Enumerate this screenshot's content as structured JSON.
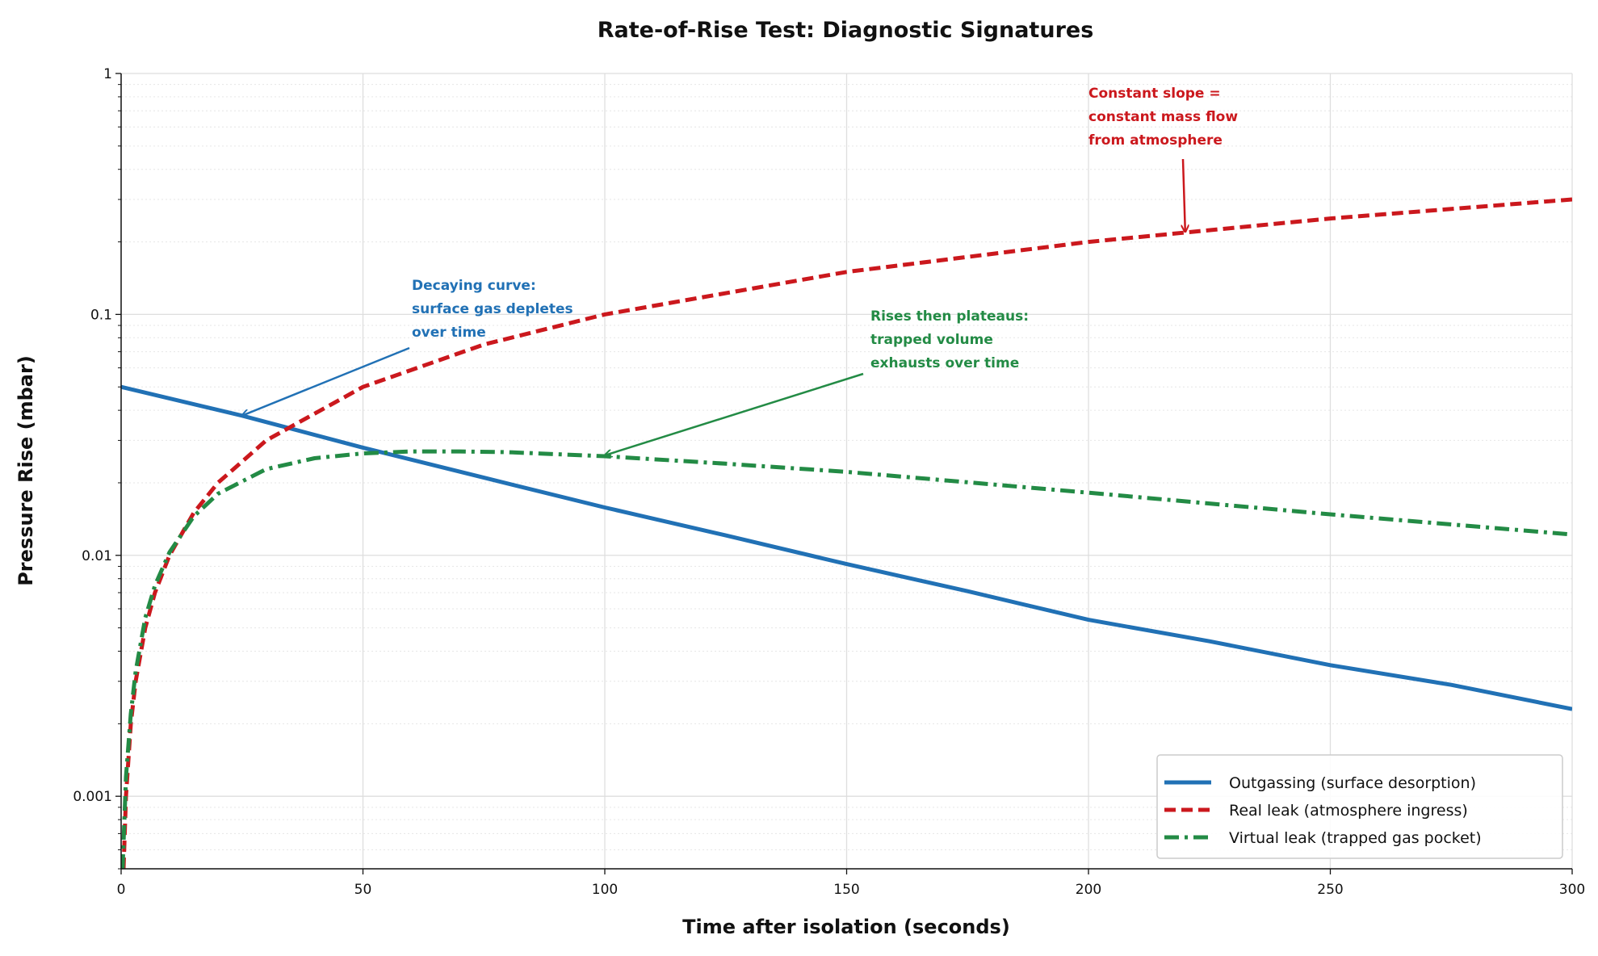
{
  "chart_data": {
    "type": "line",
    "title": "Rate-of-Rise Test: Diagnostic Signatures",
    "xlabel": "Time after isolation (seconds)",
    "ylabel": "Pressure Rise (mbar)",
    "xlim": [
      0,
      300
    ],
    "ylim": [
      0.0005,
      1
    ],
    "yscale": "log",
    "grid": true,
    "legend_placement": "lower-right",
    "x_ticks": [
      "0",
      "50",
      "100",
      "150",
      "200",
      "250",
      "300"
    ],
    "y_ticks": [
      "0.001",
      "0.01",
      "0.1",
      "1"
    ],
    "series": [
      {
        "name": "Outgassing (surface desorption)",
        "color": "#2171b5",
        "style": "solid",
        "x": [
          0,
          25,
          50,
          75,
          100,
          125,
          150,
          175,
          200,
          225,
          250,
          275,
          300
        ],
        "y": [
          0.05,
          0.038,
          0.028,
          0.021,
          0.0158,
          0.0121,
          0.0092,
          0.0071,
          0.0054,
          0.0044,
          0.0035,
          0.0029,
          0.0023
        ]
      },
      {
        "name": "Real leak (atmosphere ingress)",
        "color": "#cb181d",
        "style": "dashed",
        "x": [
          0.5,
          1,
          2,
          3,
          5,
          7,
          10,
          15,
          20,
          30,
          50,
          75,
          100,
          150,
          200,
          250,
          300
        ],
        "y": [
          0.0005,
          0.001,
          0.002,
          0.003,
          0.005,
          0.007,
          0.01,
          0.015,
          0.02,
          0.03,
          0.05,
          0.075,
          0.1,
          0.15,
          0.2,
          0.25,
          0.3
        ]
      },
      {
        "name": "Virtual leak (trapped gas pocket)",
        "color": "#238b45",
        "style": "dashdot",
        "x": [
          0.3,
          1,
          2,
          3,
          5,
          7,
          10,
          15,
          20,
          30,
          40,
          50,
          60,
          70,
          80,
          100,
          125,
          150,
          175,
          200,
          250,
          300
        ],
        "y": [
          0.0005,
          0.0012,
          0.0022,
          0.0033,
          0.0055,
          0.0075,
          0.0103,
          0.0145,
          0.018,
          0.0228,
          0.0253,
          0.0265,
          0.027,
          0.027,
          0.0268,
          0.0258,
          0.024,
          0.0222,
          0.0201,
          0.0182,
          0.0148,
          0.0122
        ]
      }
    ],
    "annotations": [
      {
        "lines": [
          "Constant slope =",
          "constant mass flow",
          "from atmosphere"
        ],
        "color": "#cb181d",
        "arrow_to": [
          220,
          0.22
        ]
      },
      {
        "lines": [
          "Decaying curve:",
          "surface gas depletes",
          "over time"
        ],
        "color": "#2171b5",
        "arrow_to": [
          25,
          0.038
        ]
      },
      {
        "lines": [
          "Rises then plateaus:",
          "trapped volume",
          "exhausts over time"
        ],
        "color": "#238b45",
        "arrow_to": [
          100,
          0.026
        ]
      }
    ]
  }
}
